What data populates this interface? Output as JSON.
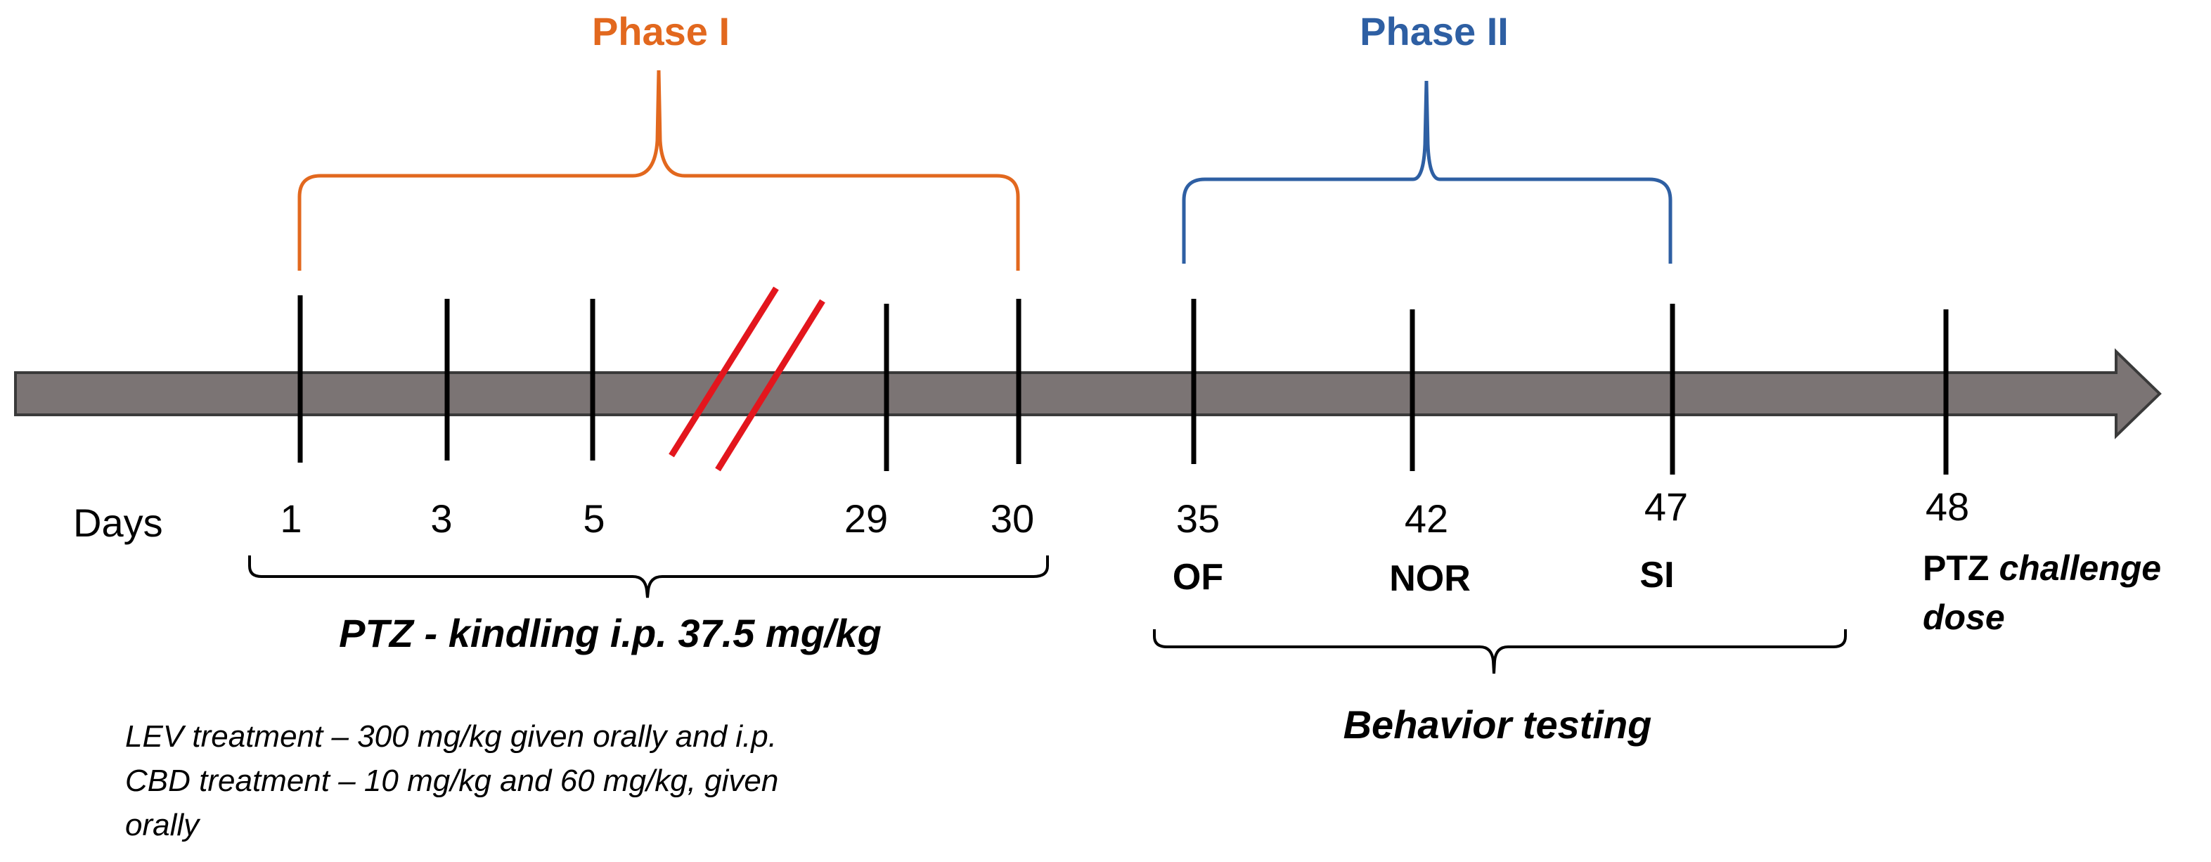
{
  "colors": {
    "phase_one": "#E2681E",
    "phase_two": "#2E5FA3",
    "arrow_fill": "#7B7474",
    "slash": "#E3161D",
    "ink": "#000000"
  },
  "phases": {
    "one": "Phase I",
    "two": "Phase II"
  },
  "timeline": {
    "days_label": "Days",
    "days": [
      "1",
      "3",
      "5",
      "29",
      "30",
      "35",
      "42",
      "47",
      "48"
    ]
  },
  "tests": {
    "of": "OF",
    "nor": "NOR",
    "si": "SI"
  },
  "challenge": {
    "bold_part": "PTZ",
    "italic_part": "challenge",
    "line2": "dose"
  },
  "kindling_label": "PTZ - kindling i.p. 37.5 mg/kg",
  "behavior_label": "Behavior testing",
  "treatment_notes": [
    "LEV treatment – 300 mg/kg given orally and i.p.",
    "CBD treatment – 10 mg/kg and 60 mg/kg, given",
    "orally"
  ]
}
